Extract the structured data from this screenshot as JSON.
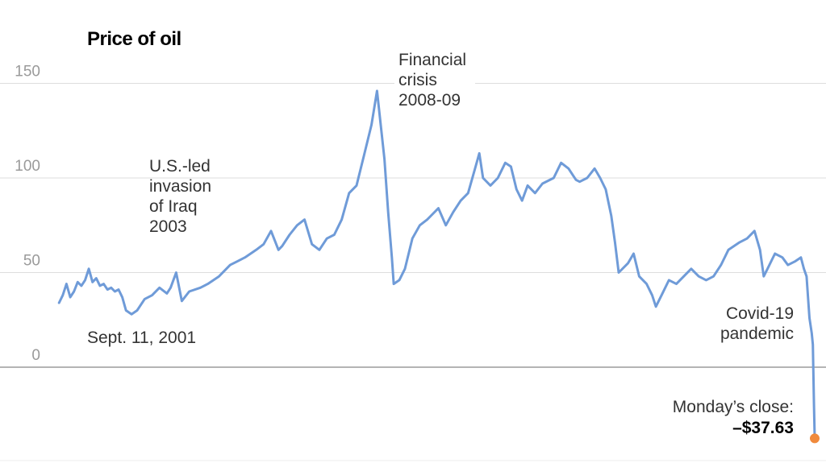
{
  "chart_data": {
    "type": "line",
    "title": "Price of oil",
    "xlabel": "",
    "ylabel": "",
    "xlim": [
      1999.8,
      2020.32
    ],
    "ylim": [
      -50,
      170
    ],
    "yticks": [
      0,
      50,
      100,
      150
    ],
    "ytick_labels": [
      "0",
      "50",
      "100",
      "150"
    ],
    "grid": true,
    "colors": {
      "line": "#6f9bd8",
      "marker": "#f08a3c",
      "grid": "#dddddd",
      "zero_line": "#888888"
    },
    "series": [
      {
        "values": [
          [
            2000.0,
            34
          ],
          [
            2000.1,
            38
          ],
          [
            2000.2,
            44
          ],
          [
            2000.3,
            37
          ],
          [
            2000.4,
            40
          ],
          [
            2000.5,
            45
          ],
          [
            2000.6,
            43
          ],
          [
            2000.7,
            46
          ],
          [
            2000.8,
            52
          ],
          [
            2000.9,
            45
          ],
          [
            2001.0,
            47
          ],
          [
            2001.1,
            43
          ],
          [
            2001.2,
            44
          ],
          [
            2001.3,
            41
          ],
          [
            2001.4,
            42
          ],
          [
            2001.5,
            40
          ],
          [
            2001.6,
            41
          ],
          [
            2001.7,
            37
          ],
          [
            2001.8,
            30
          ],
          [
            2001.95,
            28
          ],
          [
            2002.1,
            30
          ],
          [
            2002.3,
            36
          ],
          [
            2002.5,
            38
          ],
          [
            2002.7,
            42
          ],
          [
            2002.9,
            39
          ],
          [
            2003.0,
            42
          ],
          [
            2003.15,
            50
          ],
          [
            2003.3,
            35
          ],
          [
            2003.5,
            40
          ],
          [
            2003.8,
            42
          ],
          [
            2004.0,
            44
          ],
          [
            2004.3,
            48
          ],
          [
            2004.6,
            54
          ],
          [
            2004.8,
            56
          ],
          [
            2005.0,
            58
          ],
          [
            2005.3,
            62
          ],
          [
            2005.5,
            65
          ],
          [
            2005.7,
            72
          ],
          [
            2005.9,
            62
          ],
          [
            2006.0,
            64
          ],
          [
            2006.2,
            70
          ],
          [
            2006.4,
            75
          ],
          [
            2006.6,
            78
          ],
          [
            2006.8,
            65
          ],
          [
            2007.0,
            62
          ],
          [
            2007.2,
            68
          ],
          [
            2007.4,
            70
          ],
          [
            2007.6,
            78
          ],
          [
            2007.8,
            92
          ],
          [
            2008.0,
            96
          ],
          [
            2008.2,
            112
          ],
          [
            2008.4,
            128
          ],
          [
            2008.5,
            140
          ],
          [
            2008.55,
            146
          ],
          [
            2008.65,
            128
          ],
          [
            2008.75,
            110
          ],
          [
            2008.85,
            82
          ],
          [
            2008.95,
            58
          ],
          [
            2009.0,
            44
          ],
          [
            2009.15,
            46
          ],
          [
            2009.3,
            52
          ],
          [
            2009.5,
            68
          ],
          [
            2009.7,
            75
          ],
          [
            2009.9,
            78
          ],
          [
            2010.0,
            80
          ],
          [
            2010.2,
            84
          ],
          [
            2010.4,
            75
          ],
          [
            2010.6,
            82
          ],
          [
            2010.8,
            88
          ],
          [
            2011.0,
            92
          ],
          [
            2011.2,
            106
          ],
          [
            2011.3,
            113
          ],
          [
            2011.4,
            100
          ],
          [
            2011.6,
            96
          ],
          [
            2011.8,
            100
          ],
          [
            2012.0,
            108
          ],
          [
            2012.15,
            106
          ],
          [
            2012.3,
            94
          ],
          [
            2012.45,
            88
          ],
          [
            2012.6,
            96
          ],
          [
            2012.8,
            92
          ],
          [
            2013.0,
            97
          ],
          [
            2013.3,
            100
          ],
          [
            2013.5,
            108
          ],
          [
            2013.7,
            105
          ],
          [
            2013.9,
            99
          ],
          [
            2014.0,
            98
          ],
          [
            2014.2,
            100
          ],
          [
            2014.4,
            105
          ],
          [
            2014.55,
            100
          ],
          [
            2014.7,
            94
          ],
          [
            2014.85,
            80
          ],
          [
            2014.95,
            66
          ],
          [
            2015.05,
            50
          ],
          [
            2015.3,
            55
          ],
          [
            2015.45,
            60
          ],
          [
            2015.6,
            48
          ],
          [
            2015.8,
            44
          ],
          [
            2015.95,
            38
          ],
          [
            2016.05,
            32
          ],
          [
            2016.2,
            38
          ],
          [
            2016.4,
            46
          ],
          [
            2016.6,
            44
          ],
          [
            2016.8,
            48
          ],
          [
            2017.0,
            52
          ],
          [
            2017.2,
            48
          ],
          [
            2017.4,
            46
          ],
          [
            2017.6,
            48
          ],
          [
            2017.8,
            54
          ],
          [
            2018.0,
            62
          ],
          [
            2018.3,
            66
          ],
          [
            2018.5,
            68
          ],
          [
            2018.7,
            72
          ],
          [
            2018.85,
            62
          ],
          [
            2018.95,
            48
          ],
          [
            2019.05,
            52
          ],
          [
            2019.25,
            60
          ],
          [
            2019.45,
            58
          ],
          [
            2019.6,
            54
          ],
          [
            2019.8,
            56
          ],
          [
            2019.95,
            58
          ],
          [
            2020.03,
            52
          ],
          [
            2020.1,
            48
          ],
          [
            2020.18,
            26
          ],
          [
            2020.24,
            18
          ],
          [
            2020.27,
            12
          ],
          [
            2020.3,
            -20
          ],
          [
            2020.32,
            -37.63
          ]
        ]
      }
    ],
    "annotations": {
      "sept11": "Sept. 11, 2001",
      "iraq": [
        "U.S.-led",
        "invasion",
        "of Iraq",
        "2003"
      ],
      "crisis": [
        "Financial",
        "crisis",
        "2008-09"
      ],
      "covid": [
        "Covid-19",
        "pandemic"
      ],
      "close_label": "Monday’s close:",
      "close_value": "–$37.63"
    }
  }
}
